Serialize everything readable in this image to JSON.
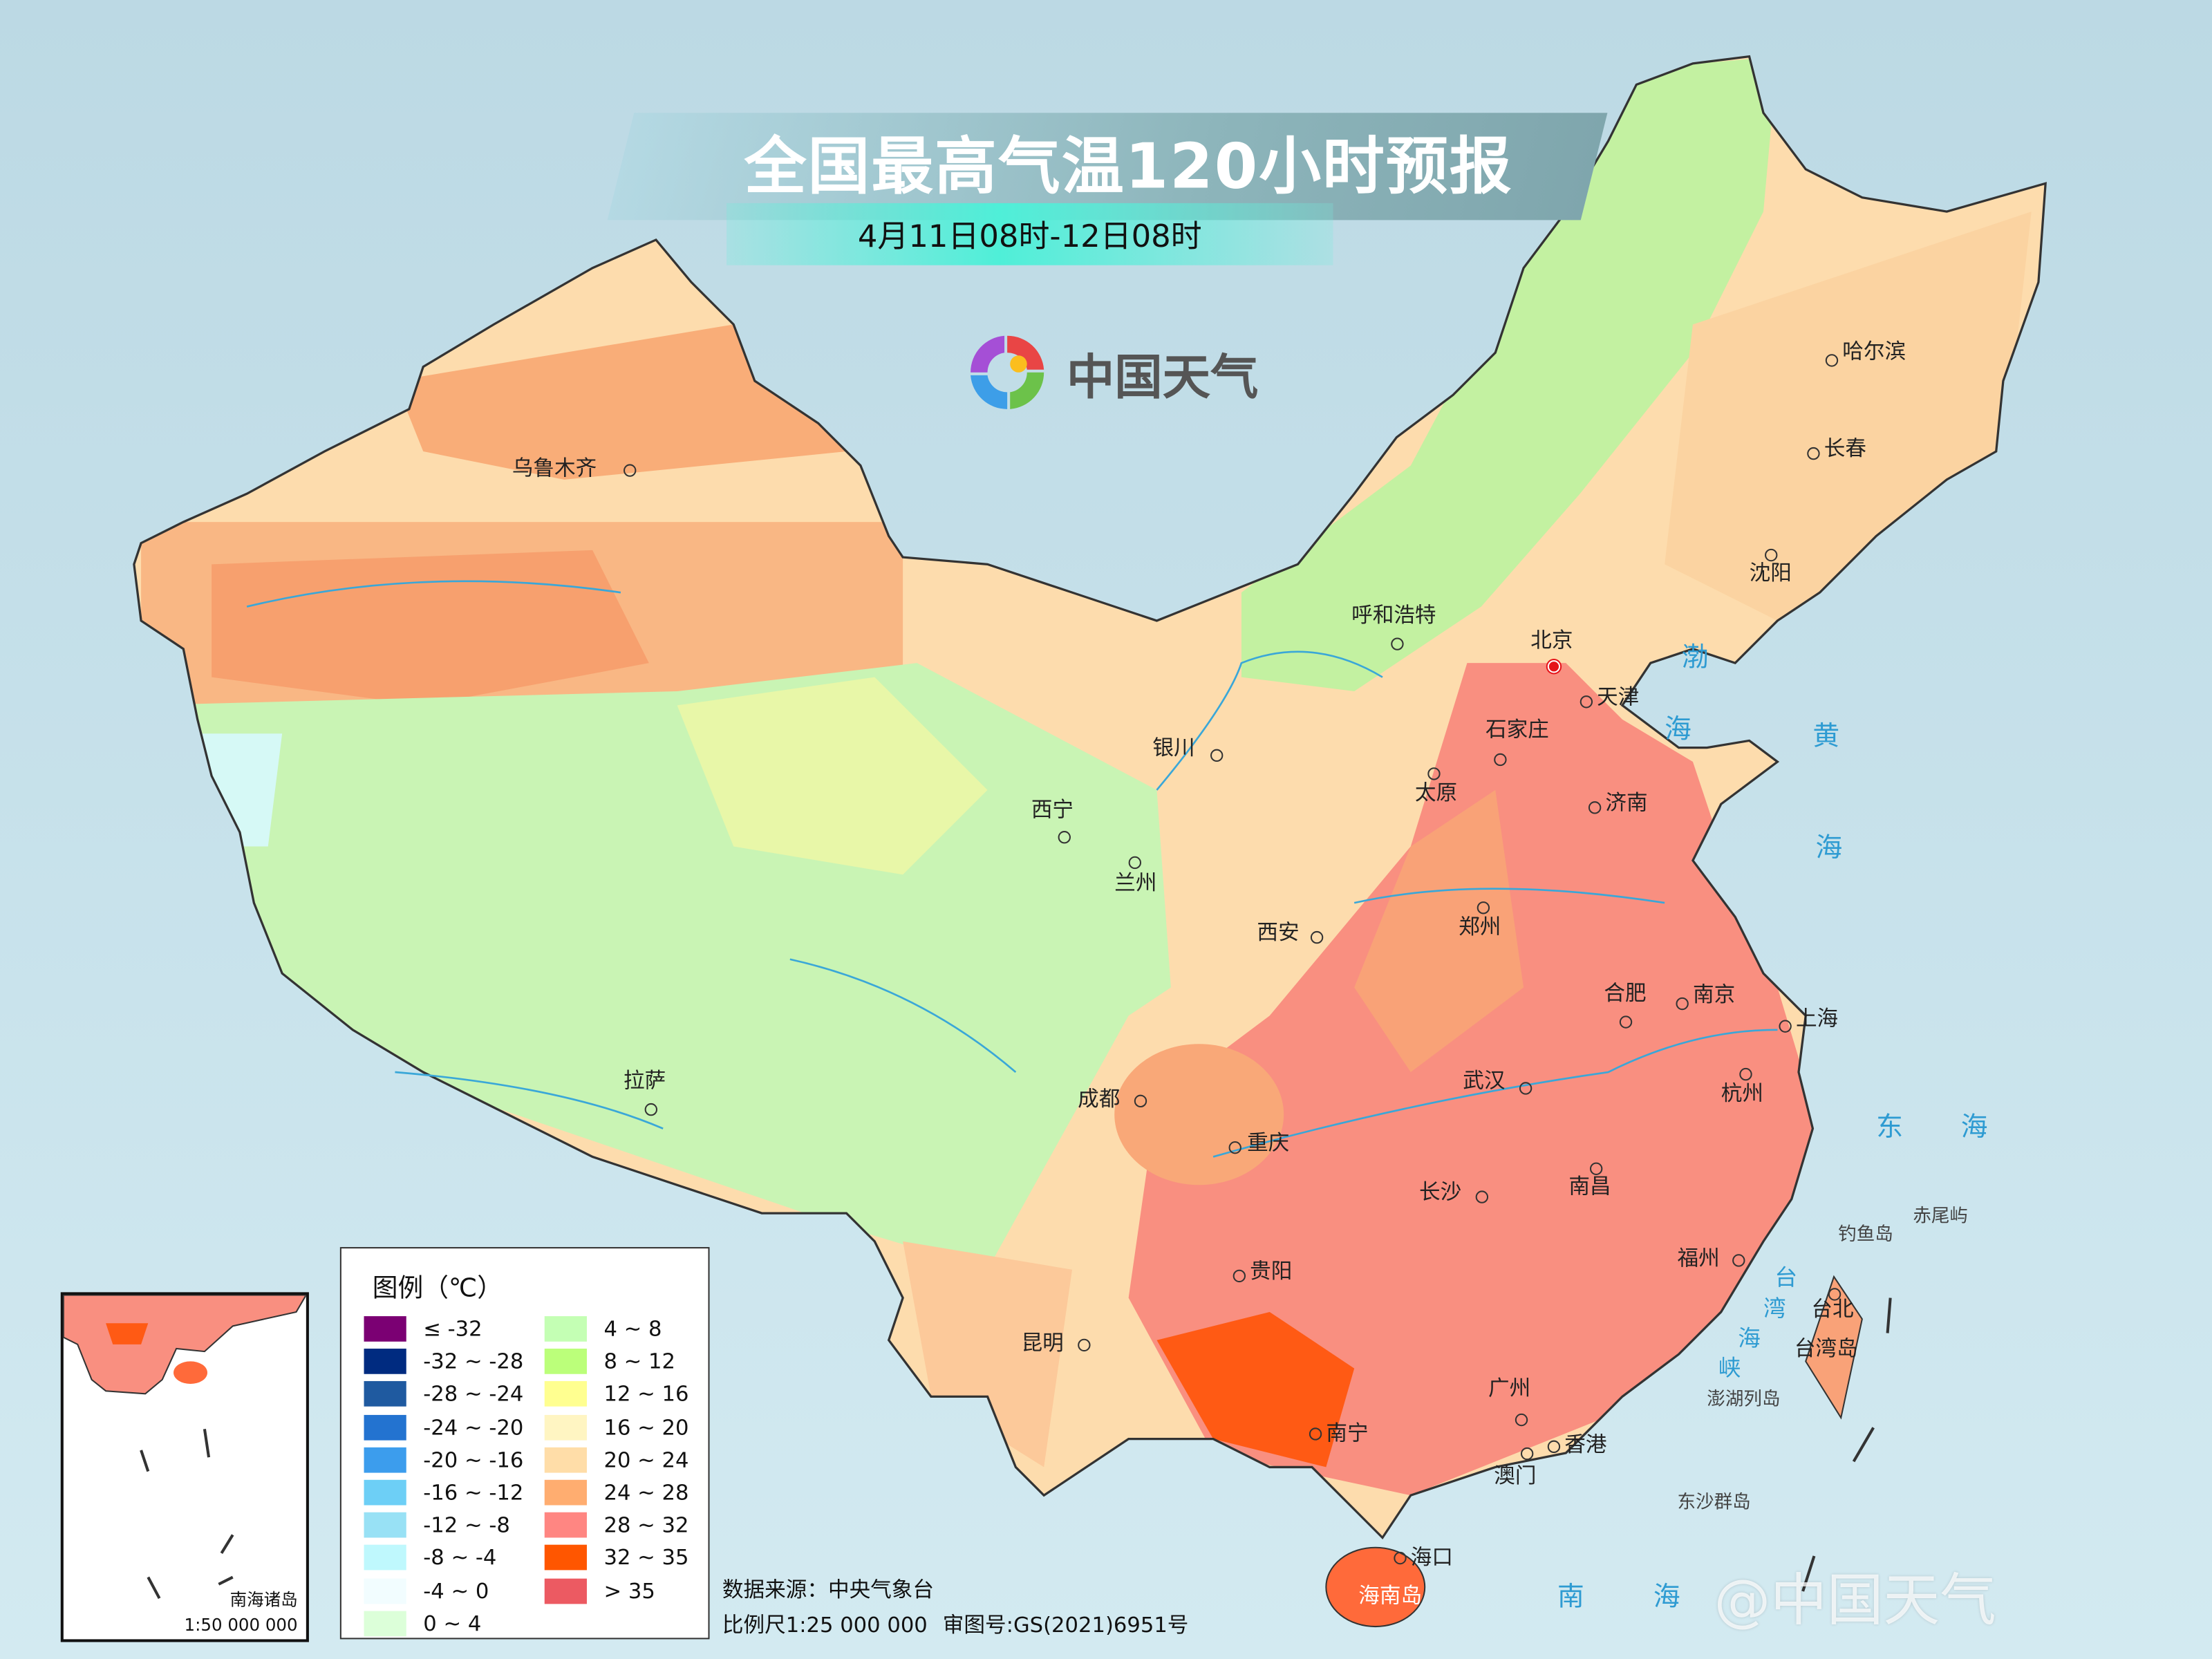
{
  "header": {
    "title": "全国最高气温120小时预报",
    "subtitle": "4月11日08时-12日08时"
  },
  "logo": {
    "text": "中国天气",
    "icon": "swirl-logo-icon"
  },
  "cities": {
    "urumqi": "乌鲁木齐",
    "harbin": "哈尔滨",
    "changchun": "长春",
    "shenyang": "沈阳",
    "hohhot": "呼和浩特",
    "beijing": "北京",
    "tianjin": "天津",
    "shijiazhuang": "石家庄",
    "taiyuan": "太原",
    "jinan": "济南",
    "yinchuan": "银川",
    "xining": "西宁",
    "lanzhou": "兰州",
    "xian": "西安",
    "zhengzhou": "郑州",
    "hefei": "合肥",
    "nanjing": "南京",
    "shanghai": "上海",
    "hangzhou": "杭州",
    "wuhan": "武汉",
    "chengdu": "成都",
    "lhasa": "拉萨",
    "chongqing": "重庆",
    "nanchang": "南昌",
    "changsha": "长沙",
    "guiyang": "贵阳",
    "fuzhou": "福州",
    "kunming": "昆明",
    "guangzhou": "广州",
    "nanning": "南宁",
    "hongkong": "香港",
    "macau": "澳门",
    "haikou": "海口",
    "taipei": "台北"
  },
  "places": {
    "hainan": "海南岛",
    "taiwan": "台湾岛",
    "diaoyu": "钓鱼岛",
    "chiwei": "赤尾屿",
    "penghu": "澎湖列岛",
    "dongsha": "东沙群岛"
  },
  "seas": {
    "bo": "渤",
    "bo_hai": "海",
    "huang": "黄",
    "huang_hai": "海",
    "dong": "东",
    "dong_hai": "海",
    "tai": "台",
    "wan": "湾",
    "hai2": "海",
    "xia": "峡",
    "nan": "南",
    "nan_hai": "海"
  },
  "legend": {
    "title": "图例（℃）",
    "items": [
      {
        "label": "≤ -32",
        "color": "#7b0073"
      },
      {
        "label": "-32 ~ -28",
        "color": "#002b80"
      },
      {
        "label": "-28 ~ -24",
        "color": "#1f5aa0"
      },
      {
        "label": "-24 ~ -20",
        "color": "#2373d0"
      },
      {
        "label": "-20 ~ -16",
        "color": "#3c9ded"
      },
      {
        "label": "-16 ~ -12",
        "color": "#6dcff6"
      },
      {
        "label": "-12 ~ -8",
        "color": "#98e1f5"
      },
      {
        "label": "-8 ~ -4",
        "color": "#bff8fd"
      },
      {
        "label": "-4 ~ 0",
        "color": "#f2fdff"
      },
      {
        "label": "0 ~ 4",
        "color": "#dcffd9"
      },
      {
        "label": "4 ~ 8",
        "color": "#c4ffb4"
      },
      {
        "label": "8 ~ 12",
        "color": "#bbff7a"
      },
      {
        "label": "12 ~ 16",
        "color": "#ffff90"
      },
      {
        "label": "16 ~ 20",
        "color": "#fff5c2"
      },
      {
        "label": "20 ~ 24",
        "color": "#ffdda8"
      },
      {
        "label": "24 ~ 28",
        "color": "#ffad70"
      },
      {
        "label": "28 ~ 32",
        "color": "#ff8682"
      },
      {
        "label": "32 ~ 35",
        "color": "#ff5600"
      },
      {
        "label": "> 35",
        "color": "#ec5a62"
      }
    ]
  },
  "inset": {
    "name": "南海诸岛",
    "scale": "1:50 000 000"
  },
  "footer": {
    "source": "数据来源：中央气象台",
    "scale": "比例尺1:25 000 000",
    "map_number": "审图号:GS(2021)6951号"
  },
  "watermark": "@中国天气"
}
